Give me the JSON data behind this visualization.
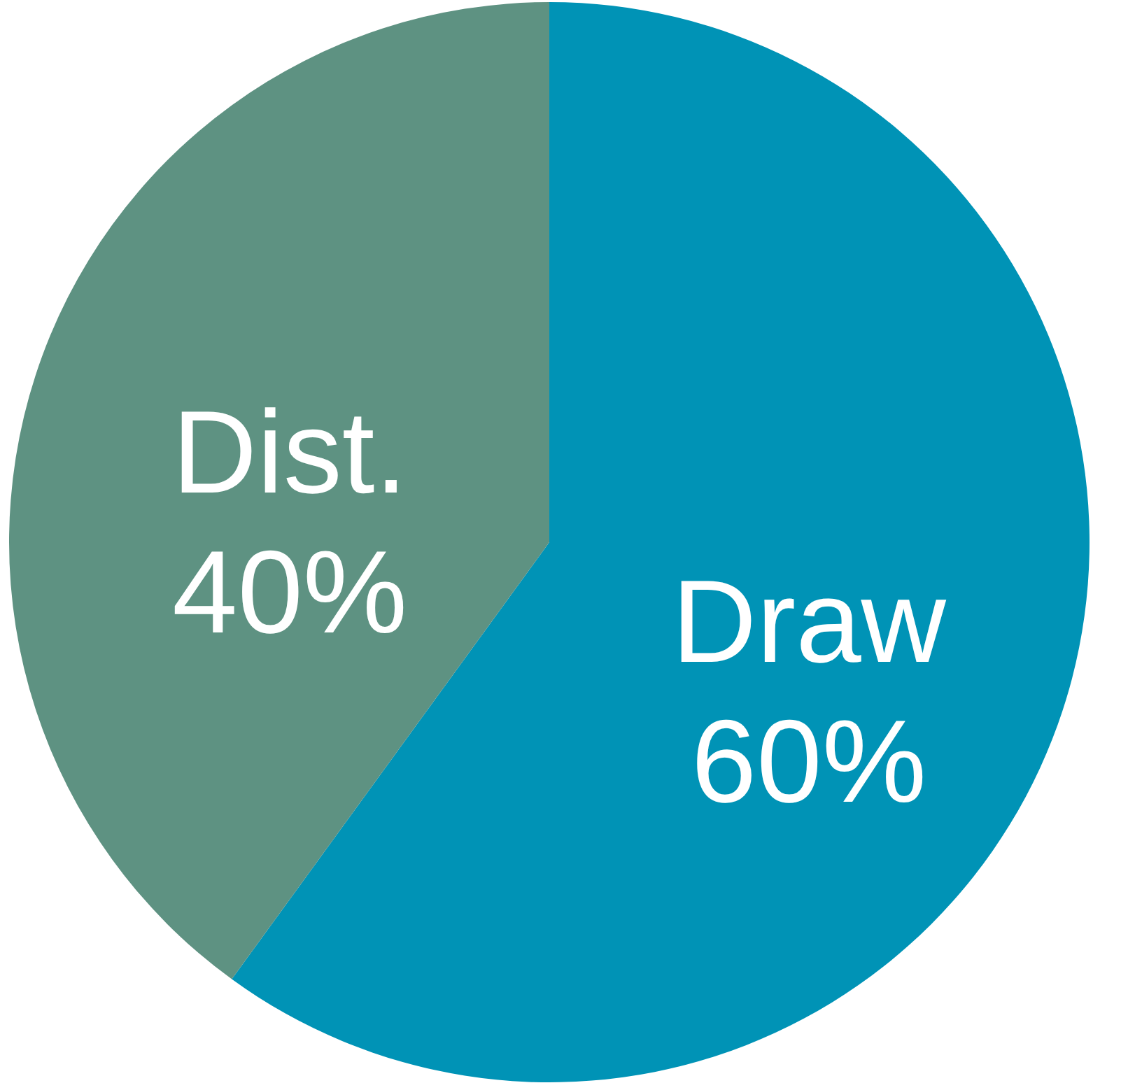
{
  "chart_data": {
    "type": "pie",
    "categories": [
      "Draw",
      "Dist."
    ],
    "values": [
      60,
      40
    ],
    "value_labels": [
      "60%",
      "40%"
    ],
    "colors": [
      "#0093b6",
      "#5e9282"
    ]
  }
}
